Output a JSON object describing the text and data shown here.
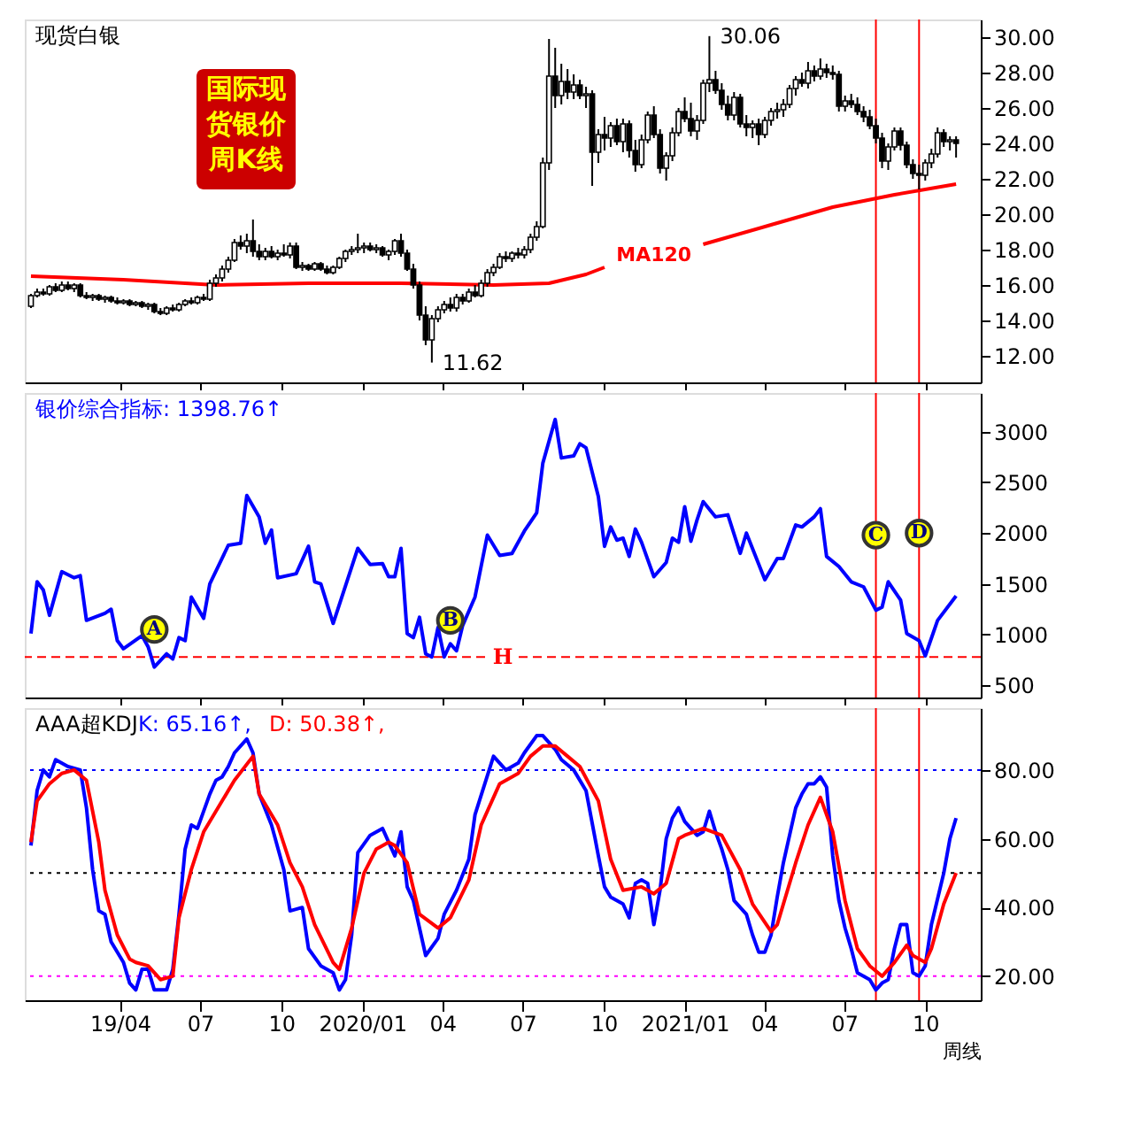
{
  "chart_data": [
    {
      "type": "candlestick",
      "title": "现货白银",
      "tick_labels": "y",
      "grid": false,
      "xlim": [
        "2018-12-14",
        "2021-12-03"
      ],
      "xticks": [
        {
          "value": "2019-04-01",
          "label": null
        },
        {
          "value": "2019-07-01",
          "label": null
        },
        {
          "value": "2019-10-01",
          "label": null
        },
        {
          "value": "2020-01-01",
          "label": null
        },
        {
          "value": "2020-04-01",
          "label": null
        },
        {
          "value": "2020-07-01",
          "label": null
        },
        {
          "value": "2020-10-01",
          "label": null
        },
        {
          "value": "2021-01-01",
          "label": null
        },
        {
          "value": "2021-04-01",
          "label": null
        },
        {
          "value": "2021-07-01",
          "label": null
        },
        {
          "value": "2021-10-01",
          "label": null
        }
      ],
      "ylim": [
        10.5,
        31
      ],
      "yticks": [
        {
          "value": 12,
          "label": "12.00"
        },
        {
          "value": 14,
          "label": "14.00"
        },
        {
          "value": 16,
          "label": "16.00"
        },
        {
          "value": 18,
          "label": "18.00"
        },
        {
          "value": 20,
          "label": "20.00"
        },
        {
          "value": 22,
          "label": "22.00"
        },
        {
          "value": 24,
          "label": "24.00"
        },
        {
          "value": 26,
          "label": "26.00"
        },
        {
          "value": 28,
          "label": "28.00"
        },
        {
          "value": 30,
          "label": "30.00"
        }
      ],
      "x": [
        "2018-12-21",
        "2018-12-28",
        "2019-01-04",
        "2019-01-11",
        "2019-01-18",
        "2019-01-25",
        "2019-02-01",
        "2019-02-08",
        "2019-02-15",
        "2019-02-22",
        "2019-03-01",
        "2019-03-08",
        "2019-03-15",
        "2019-03-22",
        "2019-03-29",
        "2019-04-05",
        "2019-04-12",
        "2019-04-19",
        "2019-04-26",
        "2019-05-03",
        "2019-05-10",
        "2019-05-17",
        "2019-05-24",
        "2019-05-31",
        "2019-06-07",
        "2019-06-14",
        "2019-06-21",
        "2019-06-28",
        "2019-07-05",
        "2019-07-12",
        "2019-07-19",
        "2019-07-26",
        "2019-08-02",
        "2019-08-09",
        "2019-08-16",
        "2019-08-23",
        "2019-08-30",
        "2019-09-06",
        "2019-09-13",
        "2019-09-20",
        "2019-09-27",
        "2019-10-04",
        "2019-10-11",
        "2019-10-18",
        "2019-10-25",
        "2019-11-01",
        "2019-11-08",
        "2019-11-15",
        "2019-11-22",
        "2019-11-29",
        "2019-12-06",
        "2019-12-13",
        "2019-12-20",
        "2019-12-27",
        "2020-01-03",
        "2020-01-10",
        "2020-01-17",
        "2020-01-24",
        "2020-01-31",
        "2020-02-07",
        "2020-02-14",
        "2020-02-21",
        "2020-02-28",
        "2020-03-06",
        "2020-03-13",
        "2020-03-20",
        "2020-03-27",
        "2020-04-03",
        "2020-04-10",
        "2020-04-17",
        "2020-04-24",
        "2020-05-01",
        "2020-05-08",
        "2020-05-15",
        "2020-05-22",
        "2020-05-29",
        "2020-06-05",
        "2020-06-12",
        "2020-06-19",
        "2020-06-26",
        "2020-07-03",
        "2020-07-10",
        "2020-07-17",
        "2020-07-24",
        "2020-07-31",
        "2020-08-07",
        "2020-08-14",
        "2020-08-21",
        "2020-08-28",
        "2020-09-04",
        "2020-09-11",
        "2020-09-18",
        "2020-09-25",
        "2020-10-02",
        "2020-10-09",
        "2020-10-16",
        "2020-10-23",
        "2020-10-30",
        "2020-11-06",
        "2020-11-13",
        "2020-11-20",
        "2020-11-27",
        "2020-12-04",
        "2020-12-11",
        "2020-12-18",
        "2020-12-25",
        "2021-01-01",
        "2021-01-08",
        "2021-01-15",
        "2021-01-22",
        "2021-01-29",
        "2021-02-05",
        "2021-02-12",
        "2021-02-19",
        "2021-02-26",
        "2021-03-05",
        "2021-03-12",
        "2021-03-19",
        "2021-03-26",
        "2021-04-02",
        "2021-04-09",
        "2021-04-16",
        "2021-04-23",
        "2021-04-30",
        "2021-05-07",
        "2021-05-14",
        "2021-05-21",
        "2021-05-28",
        "2021-06-04",
        "2021-06-11",
        "2021-06-18",
        "2021-06-25",
        "2021-07-02",
        "2021-07-09",
        "2021-07-16",
        "2021-07-23",
        "2021-07-30",
        "2021-08-06",
        "2021-08-13",
        "2021-08-20",
        "2021-08-27",
        "2021-09-03",
        "2021-09-10",
        "2021-09-17",
        "2021-09-24",
        "2021-10-01",
        "2021-10-08",
        "2021-10-15",
        "2021-10-22",
        "2021-10-29",
        "2021-11-05"
      ],
      "ohlc": [
        [
          14.8,
          15.5,
          14.7,
          15.4
        ],
        [
          15.4,
          15.8,
          15.3,
          15.6
        ],
        [
          15.6,
          15.8,
          15.4,
          15.5
        ],
        [
          15.5,
          16.0,
          15.4,
          15.9
        ],
        [
          15.9,
          16.1,
          15.6,
          15.7
        ],
        [
          15.7,
          16.2,
          15.6,
          16.0
        ],
        [
          16.0,
          16.2,
          15.7,
          15.8
        ],
        [
          15.8,
          16.1,
          15.6,
          16.0
        ],
        [
          16.0,
          16.1,
          15.3,
          15.4
        ],
        [
          15.4,
          15.6,
          15.2,
          15.3
        ],
        [
          15.3,
          15.5,
          15.1,
          15.4
        ],
        [
          15.4,
          15.5,
          15.1,
          15.2
        ],
        [
          15.2,
          15.4,
          15.0,
          15.3
        ],
        [
          15.3,
          15.4,
          15.0,
          15.1
        ],
        [
          15.1,
          15.3,
          14.9,
          15.0
        ],
        [
          15.0,
          15.2,
          14.9,
          15.1
        ],
        [
          15.1,
          15.2,
          14.8,
          14.9
        ],
        [
          14.9,
          15.1,
          14.8,
          15.0
        ],
        [
          15.0,
          15.1,
          14.7,
          14.8
        ],
        [
          14.8,
          15.0,
          14.6,
          14.9
        ],
        [
          14.9,
          15.0,
          14.4,
          14.5
        ],
        [
          14.5,
          14.7,
          14.3,
          14.4
        ],
        [
          14.4,
          14.8,
          14.3,
          14.7
        ],
        [
          14.7,
          14.9,
          14.5,
          14.6
        ],
        [
          14.6,
          15.0,
          14.5,
          14.9
        ],
        [
          14.9,
          15.2,
          14.8,
          15.1
        ],
        [
          15.1,
          15.3,
          14.9,
          15.0
        ],
        [
          15.0,
          15.4,
          14.9,
          15.3
        ],
        [
          15.3,
          15.5,
          15.1,
          15.2
        ],
        [
          15.2,
          16.3,
          15.1,
          16.1
        ],
        [
          16.1,
          16.6,
          15.9,
          16.4
        ],
        [
          16.4,
          17.1,
          16.2,
          16.9
        ],
        [
          16.9,
          17.6,
          16.7,
          17.4
        ],
        [
          17.4,
          18.6,
          17.3,
          18.4
        ],
        [
          18.4,
          18.8,
          18.0,
          18.2
        ],
        [
          18.2,
          18.9,
          17.8,
          18.5
        ],
        [
          18.5,
          19.7,
          17.6,
          17.9
        ],
        [
          17.9,
          18.3,
          17.4,
          17.6
        ],
        [
          17.6,
          18.1,
          17.4,
          17.9
        ],
        [
          17.9,
          18.2,
          17.5,
          17.6
        ],
        [
          17.6,
          18.0,
          17.4,
          17.8
        ],
        [
          17.8,
          18.3,
          17.6,
          17.7
        ],
        [
          17.7,
          18.4,
          17.5,
          18.2
        ],
        [
          18.2,
          18.4,
          16.9,
          17.0
        ],
        [
          17.0,
          17.3,
          16.8,
          17.1
        ],
        [
          17.1,
          17.2,
          16.8,
          16.9
        ],
        [
          16.9,
          17.3,
          16.8,
          17.2
        ],
        [
          17.2,
          17.3,
          16.8,
          16.9
        ],
        [
          16.9,
          17.1,
          16.6,
          16.7
        ],
        [
          16.7,
          17.1,
          16.6,
          17.0
        ],
        [
          17.0,
          17.6,
          16.9,
          17.5
        ],
        [
          17.5,
          18.0,
          17.3,
          17.9
        ],
        [
          17.9,
          18.2,
          17.7,
          18.0
        ],
        [
          18.0,
          18.9,
          17.8,
          18.1
        ],
        [
          18.1,
          18.4,
          17.8,
          18.2
        ],
        [
          18.2,
          18.4,
          17.9,
          18.0
        ],
        [
          18.0,
          18.3,
          17.8,
          18.1
        ],
        [
          18.1,
          18.2,
          17.6,
          17.7
        ],
        [
          17.7,
          18.0,
          17.4,
          17.9
        ],
        [
          17.9,
          18.6,
          17.7,
          18.5
        ],
        [
          18.5,
          18.9,
          17.6,
          17.8
        ],
        [
          17.8,
          18.0,
          16.8,
          16.9
        ],
        [
          16.9,
          17.2,
          15.8,
          16.0
        ],
        [
          16.0,
          16.2,
          14.0,
          14.3
        ],
        [
          14.3,
          14.8,
          12.6,
          12.9
        ],
        [
          12.9,
          14.3,
          11.62,
          14.1
        ],
        [
          14.1,
          14.8,
          13.9,
          14.6
        ],
        [
          14.6,
          15.1,
          14.4,
          14.9
        ],
        [
          14.9,
          15.3,
          14.5,
          14.7
        ],
        [
          14.7,
          15.5,
          14.5,
          15.3
        ],
        [
          15.3,
          15.5,
          14.9,
          15.1
        ],
        [
          15.1,
          15.8,
          15.0,
          15.6
        ],
        [
          15.6,
          16.0,
          15.3,
          15.4
        ],
        [
          15.4,
          16.3,
          15.3,
          16.1
        ],
        [
          16.1,
          16.9,
          15.9,
          16.7
        ],
        [
          16.7,
          17.2,
          16.5,
          17.0
        ],
        [
          17.0,
          17.8,
          16.9,
          17.6
        ],
        [
          17.6,
          17.9,
          17.3,
          17.5
        ],
        [
          17.5,
          17.9,
          17.3,
          17.8
        ],
        [
          17.8,
          18.1,
          17.5,
          17.7
        ],
        [
          17.7,
          18.2,
          17.5,
          18.0
        ],
        [
          18.0,
          18.9,
          17.8,
          18.7
        ],
        [
          18.7,
          19.6,
          18.5,
          19.3
        ],
        [
          19.3,
          23.2,
          19.2,
          22.9
        ],
        [
          22.9,
          29.9,
          22.5,
          27.8
        ],
        [
          27.8,
          29.4,
          26.0,
          26.7
        ],
        [
          26.7,
          28.5,
          26.2,
          27.5
        ],
        [
          27.5,
          28.2,
          26.5,
          26.9
        ],
        [
          26.9,
          27.9,
          26.5,
          27.3
        ],
        [
          27.3,
          27.6,
          26.5,
          26.7
        ],
        [
          26.7,
          27.2,
          26.0,
          26.8
        ],
        [
          26.8,
          27.0,
          21.6,
          23.5
        ],
        [
          23.5,
          24.8,
          22.9,
          24.5
        ],
        [
          24.5,
          25.5,
          23.6,
          24.3
        ],
        [
          24.3,
          25.2,
          23.8,
          25.0
        ],
        [
          25.0,
          25.4,
          23.9,
          24.1
        ],
        [
          24.1,
          25.4,
          23.5,
          25.1
        ],
        [
          25.1,
          25.3,
          23.2,
          23.6
        ],
        [
          23.6,
          24.2,
          22.4,
          22.8
        ],
        [
          22.8,
          24.5,
          22.6,
          24.2
        ],
        [
          24.2,
          25.8,
          24.0,
          25.6
        ],
        [
          25.6,
          26.1,
          24.3,
          24.5
        ],
        [
          24.5,
          24.8,
          22.3,
          22.6
        ],
        [
          22.6,
          23.5,
          21.9,
          23.3
        ],
        [
          23.3,
          24.9,
          23.0,
          24.6
        ],
        [
          24.6,
          26.0,
          24.4,
          25.8
        ],
        [
          25.8,
          26.6,
          25.2,
          25.4
        ],
        [
          25.4,
          26.3,
          24.4,
          24.7
        ],
        [
          24.7,
          25.6,
          24.2,
          25.3
        ],
        [
          25.3,
          27.6,
          25.1,
          27.4
        ],
        [
          27.4,
          30.06,
          26.9,
          27.6
        ],
        [
          27.6,
          28.1,
          26.8,
          27.0
        ],
        [
          27.0,
          27.4,
          25.9,
          26.2
        ],
        [
          26.2,
          26.7,
          25.3,
          25.6
        ],
        [
          25.6,
          26.9,
          25.3,
          26.6
        ],
        [
          26.6,
          26.8,
          24.9,
          25.1
        ],
        [
          25.1,
          25.6,
          24.4,
          24.9
        ],
        [
          24.9,
          25.3,
          24.3,
          25.1
        ],
        [
          25.1,
          25.4,
          23.9,
          24.5
        ],
        [
          24.5,
          25.5,
          24.3,
          25.3
        ],
        [
          25.3,
          26.0,
          25.0,
          25.8
        ],
        [
          25.8,
          26.3,
          25.4,
          25.9
        ],
        [
          25.9,
          26.5,
          25.5,
          26.2
        ],
        [
          26.2,
          27.3,
          26.0,
          27.1
        ],
        [
          27.1,
          27.8,
          26.7,
          27.6
        ],
        [
          27.6,
          28.0,
          27.2,
          27.4
        ],
        [
          27.4,
          28.6,
          27.1,
          28.1
        ],
        [
          28.1,
          28.4,
          27.5,
          27.8
        ],
        [
          27.8,
          28.8,
          27.6,
          28.2
        ],
        [
          28.2,
          28.5,
          27.7,
          28.0
        ],
        [
          28.0,
          28.4,
          27.6,
          27.9
        ],
        [
          27.9,
          28.1,
          25.8,
          26.1
        ],
        [
          26.1,
          26.7,
          25.8,
          26.4
        ],
        [
          26.4,
          26.8,
          26.0,
          26.2
        ],
        [
          26.2,
          26.6,
          25.6,
          25.8
        ],
        [
          25.8,
          26.1,
          25.2,
          25.5
        ],
        [
          25.5,
          25.9,
          24.8,
          25.0
        ],
        [
          25.0,
          25.4,
          24.0,
          24.3
        ],
        [
          24.3,
          24.6,
          22.6,
          23.0
        ],
        [
          23.0,
          24.0,
          22.5,
          23.8
        ],
        [
          23.8,
          24.9,
          23.6,
          24.7
        ],
        [
          24.7,
          24.9,
          23.6,
          23.9
        ],
        [
          23.9,
          24.1,
          22.6,
          22.8
        ],
        [
          22.8,
          23.1,
          22.0,
          22.3
        ],
        [
          22.3,
          22.8,
          21.4,
          22.2
        ],
        [
          22.2,
          23.1,
          21.9,
          22.9
        ],
        [
          22.9,
          23.7,
          22.6,
          23.4
        ],
        [
          23.4,
          24.9,
          23.2,
          24.6
        ],
        [
          24.6,
          24.8,
          23.8,
          24.1
        ],
        [
          24.1,
          24.4,
          23.6,
          24.2
        ],
        [
          24.2,
          24.4,
          23.2,
          24.0
        ]
      ],
      "series": [
        {
          "name": "MA120",
          "type": "line",
          "color": "#ff0000",
          "x": [
            "2018-12-21",
            "2019-04-05",
            "2019-07-19",
            "2019-11-01",
            "2020-02-14",
            "2020-05-29",
            "2020-07-31",
            "2020-09-11",
            "2020-10-02",
            "2020-11-20",
            "2021-01-22",
            "2021-04-09",
            "2021-06-18",
            "2021-08-27",
            "2021-11-05"
          ],
          "values": [
            16.5,
            16.3,
            16.0,
            16.1,
            16.1,
            16.0,
            16.1,
            16.6,
            17.0,
            null,
            18.3,
            19.4,
            20.4,
            21.1,
            21.7
          ]
        }
      ],
      "ref_lines": [
        {
          "axis": "x",
          "value": "2021-08-06",
          "color": "#ff0000"
        },
        {
          "axis": "x",
          "value": "2021-09-24",
          "color": "#ff0000"
        }
      ],
      "annotations": [
        "国际现货银价周K线",
        {
          "text": "30.06",
          "x": "2021-01-29",
          "y": 30.06
        },
        {
          "text": "11.62",
          "x": "2020-03-20",
          "y": 11.62
        }
      ]
    },
    {
      "type": "line",
      "tick_labels": "y",
      "grid": false,
      "legend": "top left",
      "xlim": [
        "2018-12-14",
        "2021-12-03"
      ],
      "xticks": [
        {
          "value": "2019-04-01",
          "label": null
        },
        {
          "value": "2019-07-01",
          "label": null
        },
        {
          "value": "2019-10-01",
          "label": null
        },
        {
          "value": "2020-01-01",
          "label": null
        },
        {
          "value": "2020-04-01",
          "label": null
        },
        {
          "value": "2020-07-01",
          "label": null
        },
        {
          "value": "2020-10-01",
          "label": null
        },
        {
          "value": "2021-01-01",
          "label": null
        },
        {
          "value": "2021-04-01",
          "label": null
        },
        {
          "value": "2021-07-01",
          "label": null
        },
        {
          "value": "2021-10-01",
          "label": null
        }
      ],
      "ylim": [
        380,
        3380
      ],
      "yticks": [
        500,
        1000,
        1500,
        2000,
        2500,
        3000
      ],
      "series": [
        {
          "name": "银价综合指标: 1398.76↑",
          "color": "#0000ff",
          "x": [
            "2018-12-21",
            "2018-12-28",
            "2019-01-04",
            "2019-01-11",
            "2019-01-25",
            "2019-02-08",
            "2019-02-15",
            "2019-02-22",
            "2019-03-15",
            "2019-03-22",
            "2019-03-29",
            "2019-04-05",
            "2019-04-26",
            "2019-05-03",
            "2019-05-10",
            "2019-05-24",
            "2019-05-31",
            "2019-06-07",
            "2019-06-14",
            "2019-06-21",
            "2019-07-05",
            "2019-07-12",
            "2019-08-02",
            "2019-08-16",
            "2019-08-23",
            "2019-09-06",
            "2019-09-13",
            "2019-09-20",
            "2019-09-27",
            "2019-10-18",
            "2019-11-01",
            "2019-11-08",
            "2019-11-15",
            "2019-11-29",
            "2019-12-27",
            "2020-01-10",
            "2020-01-24",
            "2020-01-31",
            "2020-02-07",
            "2020-02-14",
            "2020-02-21",
            "2020-02-28",
            "2020-03-06",
            "2020-03-13",
            "2020-03-20",
            "2020-03-27",
            "2020-04-03",
            "2020-04-10",
            "2020-04-17",
            "2020-04-24",
            "2020-05-08",
            "2020-05-22",
            "2020-06-05",
            "2020-06-19",
            "2020-07-03",
            "2020-07-17",
            "2020-07-24",
            "2020-08-07",
            "2020-08-14",
            "2020-08-28",
            "2020-09-04",
            "2020-09-11",
            "2020-09-25",
            "2020-10-02",
            "2020-10-09",
            "2020-10-16",
            "2020-10-23",
            "2020-10-30",
            "2020-11-06",
            "2020-11-13",
            "2020-11-27",
            "2020-12-11",
            "2020-12-18",
            "2020-12-25",
            "2021-01-01",
            "2021-01-08",
            "2021-01-15",
            "2021-01-22",
            "2021-02-05",
            "2021-02-19",
            "2021-03-05",
            "2021-03-12",
            "2021-04-02",
            "2021-04-16",
            "2021-04-23",
            "2021-05-07",
            "2021-05-14",
            "2021-05-28",
            "2021-06-04",
            "2021-06-11",
            "2021-06-25",
            "2021-07-09",
            "2021-07-23",
            "2021-08-06",
            "2021-08-13",
            "2021-08-20",
            "2021-09-03",
            "2021-09-10",
            "2021-09-24",
            "2021-10-01",
            "2021-10-15",
            "2021-11-05"
          ],
          "values": [
            1010,
            1520,
            1440,
            1190,
            1620,
            1560,
            1580,
            1140,
            1210,
            1250,
            940,
            860,
            990,
            880,
            680,
            810,
            760,
            970,
            940,
            1370,
            1160,
            1500,
            1880,
            1900,
            2370,
            2160,
            1900,
            2030,
            1560,
            1600,
            1870,
            1520,
            1500,
            1110,
            1850,
            1690,
            1700,
            1570,
            1570,
            1850,
            1010,
            970,
            1170,
            810,
            780,
            1070,
            780,
            910,
            840,
            1090,
            1370,
            1980,
            1780,
            1800,
            2020,
            2200,
            2690,
            3120,
            2740,
            2760,
            2880,
            2840,
            2360,
            1870,
            2060,
            1930,
            1950,
            1770,
            2040,
            1910,
            1570,
            1710,
            1950,
            1910,
            2260,
            1920,
            2130,
            2310,
            2160,
            2180,
            1800,
            2000,
            1540,
            1750,
            1750,
            2080,
            2060,
            2160,
            2240,
            1770,
            1670,
            1520,
            1470,
            1240,
            1270,
            1520,
            1340,
            1010,
            940,
            790,
            1140,
            1380
          ]
        }
      ],
      "ref_lines": [
        {
          "axis": "y",
          "value": 780,
          "label": "H",
          "color": "#ff0000",
          "line_style": "dashed"
        },
        {
          "axis": "x",
          "value": "2021-08-06",
          "color": "#ff0000"
        },
        {
          "axis": "x",
          "value": "2021-09-24",
          "color": "#ff0000"
        }
      ],
      "annotations": [
        {
          "text": "A",
          "x": "2019-05-10",
          "y": 1050
        },
        {
          "text": "B",
          "x": "2020-04-10",
          "y": 1140
        },
        {
          "text": "C",
          "x": "2021-08-06",
          "y": 1980
        },
        {
          "text": "D",
          "x": "2021-09-24",
          "y": 2000
        }
      ]
    },
    {
      "type": "line",
      "title": "AAA超KDJ",
      "xlabel": "周线",
      "grid": false,
      "legend": "top left",
      "xlim": [
        "2018-12-14",
        "2021-12-03"
      ],
      "xticks": [
        {
          "value": "2019-04-01",
          "label": "19/04"
        },
        {
          "value": "2019-07-01",
          "label": "07"
        },
        {
          "value": "2019-10-01",
          "label": "10"
        },
        {
          "value": "2020-01-01",
          "label": "2020/01"
        },
        {
          "value": "2020-04-01",
          "label": "04"
        },
        {
          "value": "2020-07-01",
          "label": "07"
        },
        {
          "value": "2020-10-01",
          "label": "10"
        },
        {
          "value": "2021-01-01",
          "label": "2021/01"
        },
        {
          "value": "2021-04-01",
          "label": "04"
        },
        {
          "value": "2021-07-01",
          "label": "07"
        },
        {
          "value": "2021-10-01",
          "label": "10"
        }
      ],
      "ylim": [
        13,
        98
      ],
      "yticks": [
        {
          "value": 20,
          "label": "20.00"
        },
        {
          "value": 40,
          "label": "40.00"
        },
        {
          "value": 60,
          "label": "60.00"
        },
        {
          "value": 80,
          "label": "80.00"
        }
      ],
      "series": [
        {
          "name": "K: 65.16↑,",
          "color": "#0000ff",
          "x": [
            "2018-12-21",
            "2018-12-28",
            "2019-01-04",
            "2019-01-11",
            "2019-01-18",
            "2019-02-01",
            "2019-02-15",
            "2019-02-22",
            "2019-03-01",
            "2019-03-08",
            "2019-03-15",
            "2019-03-22",
            "2019-04-05",
            "2019-04-12",
            "2019-04-19",
            "2019-04-26",
            "2019-05-03",
            "2019-05-10",
            "2019-05-24",
            "2019-05-31",
            "2019-06-07",
            "2019-06-14",
            "2019-06-21",
            "2019-06-28",
            "2019-07-12",
            "2019-07-19",
            "2019-07-26",
            "2019-08-02",
            "2019-08-09",
            "2019-08-23",
            "2019-08-30",
            "2019-09-06",
            "2019-09-20",
            "2019-10-04",
            "2019-10-11",
            "2019-10-25",
            "2019-11-01",
            "2019-11-15",
            "2019-11-29",
            "2019-12-06",
            "2019-12-13",
            "2019-12-20",
            "2019-12-27",
            "2020-01-10",
            "2020-01-24",
            "2020-01-31",
            "2020-02-07",
            "2020-02-14",
            "2020-02-21",
            "2020-02-28",
            "2020-03-13",
            "2020-03-27",
            "2020-04-03",
            "2020-04-17",
            "2020-05-01",
            "2020-05-08",
            "2020-05-29",
            "2020-06-05",
            "2020-06-12",
            "2020-06-26",
            "2020-07-03",
            "2020-07-17",
            "2020-07-24",
            "2020-08-07",
            "2020-08-14",
            "2020-08-28",
            "2020-09-11",
            "2020-09-25",
            "2020-10-02",
            "2020-10-09",
            "2020-10-23",
            "2020-10-30",
            "2020-11-06",
            "2020-11-13",
            "2020-11-20",
            "2020-11-27",
            "2020-12-04",
            "2020-12-11",
            "2020-12-18",
            "2020-12-25",
            "2021-01-01",
            "2021-01-15",
            "2021-01-22",
            "2021-01-29",
            "2021-02-05",
            "2021-02-12",
            "2021-02-19",
            "2021-02-26",
            "2021-03-12",
            "2021-03-19",
            "2021-03-26",
            "2021-04-02",
            "2021-04-09",
            "2021-04-16",
            "2021-04-23",
            "2021-05-07",
            "2021-05-14",
            "2021-05-21",
            "2021-05-28",
            "2021-06-04",
            "2021-06-11",
            "2021-06-18",
            "2021-06-25",
            "2021-07-02",
            "2021-07-09",
            "2021-07-16",
            "2021-07-30",
            "2021-08-06",
            "2021-08-13",
            "2021-08-20",
            "2021-08-27",
            "2021-09-03",
            "2021-09-10",
            "2021-09-17",
            "2021-09-24",
            "2021-10-01",
            "2021-10-08",
            "2021-10-22",
            "2021-10-29",
            "2021-11-05"
          ],
          "values": [
            58,
            74,
            80,
            78,
            83,
            81,
            80,
            69,
            51,
            39,
            38,
            30,
            24,
            18,
            16,
            22,
            22,
            16,
            16,
            22,
            38,
            57,
            64,
            63,
            73,
            77,
            78,
            81,
            85,
            89,
            85,
            73,
            64,
            51,
            39,
            40,
            28,
            23,
            21,
            16,
            19,
            32,
            56,
            61,
            63,
            59,
            55,
            62,
            46,
            42,
            26,
            31,
            38,
            45,
            54,
            67,
            84,
            82,
            80,
            82,
            85,
            90,
            90,
            86,
            83,
            80,
            74,
            55,
            46,
            43,
            41,
            37,
            47,
            48,
            47,
            35,
            45,
            60,
            66,
            69,
            65,
            61,
            62,
            68,
            62,
            57,
            51,
            42,
            38,
            32,
            27,
            27,
            32,
            43,
            53,
            69,
            73,
            76,
            76,
            78,
            75,
            55,
            42,
            34,
            28,
            21,
            19,
            16,
            18,
            19,
            28,
            35,
            35,
            21,
            20,
            23,
            35,
            50,
            60,
            66
          ]
        },
        {
          "name": "D: 50.38↑,",
          "color": "#ff0000",
          "x": [
            "2018-12-21",
            "2018-12-28",
            "2019-01-11",
            "2019-01-25",
            "2019-02-08",
            "2019-02-22",
            "2019-03-08",
            "2019-03-15",
            "2019-03-29",
            "2019-04-12",
            "2019-04-19",
            "2019-05-03",
            "2019-05-17",
            "2019-05-31",
            "2019-06-07",
            "2019-06-21",
            "2019-07-05",
            "2019-07-26",
            "2019-08-09",
            "2019-08-30",
            "2019-09-06",
            "2019-09-27",
            "2019-10-11",
            "2019-10-25",
            "2019-11-08",
            "2019-11-29",
            "2019-12-06",
            "2019-12-20",
            "2020-01-03",
            "2020-01-17",
            "2020-01-31",
            "2020-02-07",
            "2020-02-21",
            "2020-03-06",
            "2020-03-27",
            "2020-04-10",
            "2020-05-01",
            "2020-05-15",
            "2020-06-05",
            "2020-06-26",
            "2020-07-10",
            "2020-07-24",
            "2020-08-07",
            "2020-08-21",
            "2020-09-04",
            "2020-09-25",
            "2020-10-09",
            "2020-10-23",
            "2020-11-13",
            "2020-11-27",
            "2020-12-11",
            "2020-12-25",
            "2021-01-01",
            "2021-01-22",
            "2021-02-12",
            "2021-03-05",
            "2021-03-19",
            "2021-04-09",
            "2021-04-16",
            "2021-05-07",
            "2021-05-21",
            "2021-06-04",
            "2021-06-18",
            "2021-07-02",
            "2021-07-16",
            "2021-07-30",
            "2021-08-13",
            "2021-08-27",
            "2021-09-10",
            "2021-09-17",
            "2021-10-01",
            "2021-10-08",
            "2021-10-22",
            "2021-11-05"
          ],
          "values": [
            59,
            71,
            76,
            79,
            80,
            77,
            59,
            45,
            32,
            25,
            24,
            23,
            19,
            20,
            37,
            51,
            62,
            71,
            77,
            84,
            73,
            64,
            53,
            46,
            35,
            24,
            22,
            34,
            50,
            57,
            59,
            58,
            53,
            38,
            34,
            37,
            48,
            64,
            76,
            79,
            84,
            87,
            87,
            84,
            81,
            71,
            54,
            45,
            46,
            44,
            47,
            60,
            61,
            63,
            61,
            51,
            41,
            33,
            35,
            53,
            64,
            72,
            62,
            42,
            28,
            23,
            20,
            24,
            29,
            26,
            24,
            28,
            41,
            50
          ]
        }
      ],
      "ref_lines": [
        {
          "axis": "y",
          "value": 80,
          "color": "#0000ff",
          "line_style": "dotted"
        },
        {
          "axis": "y",
          "value": 50,
          "color": "#000000",
          "line_style": "dotted"
        },
        {
          "axis": "y",
          "value": 20,
          "color": "#ff00ff",
          "line_style": "dotted"
        },
        {
          "axis": "x",
          "value": "2021-08-06",
          "color": "#ff0000"
        },
        {
          "axis": "x",
          "value": "2021-09-24",
          "color": "#ff0000"
        }
      ]
    }
  ]
}
